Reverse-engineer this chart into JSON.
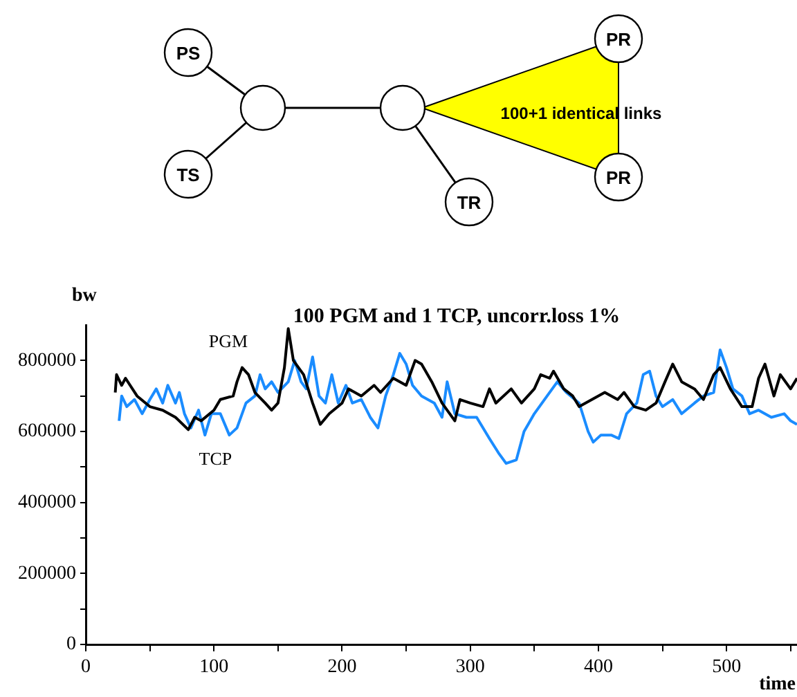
{
  "chart_data": {
    "type": "line",
    "title": "100 PGM and 1 TCP, uncorr.loss 1%",
    "xlabel": "time",
    "ylabel": "bw",
    "annotations": [
      "PS",
      "TS",
      "TR",
      "PR",
      "PR",
      "100+1 identical links"
    ],
    "xlim": [
      0,
      555
    ],
    "ylim": [
      0,
      900000
    ],
    "xticks": [
      0,
      {
        "value": 50,
        "label": null
      },
      100,
      {
        "value": 150,
        "label": null
      },
      200,
      {
        "value": 250,
        "label": null
      },
      300,
      {
        "value": 350,
        "label": null
      },
      400,
      {
        "value": 450,
        "label": null
      },
      500,
      {
        "value": 550,
        "label": null
      }
    ],
    "yticks": [
      0,
      {
        "value": 100000,
        "label": null
      },
      200000,
      {
        "value": 300000,
        "label": null
      },
      400000,
      {
        "value": 500000,
        "label": null
      },
      600000,
      {
        "value": 700000,
        "label": null
      },
      800000
    ],
    "grid": false,
    "legend": false,
    "marker": "none",
    "line_style": "solid",
    "series": [
      {
        "name": "PGM",
        "color": "#000000",
        "x": [
          23,
          24,
          28,
          31,
          40,
          50,
          60,
          70,
          80,
          85,
          90,
          100,
          105,
          115,
          118,
          122,
          127,
          132,
          140,
          145,
          150,
          155,
          158,
          162,
          170,
          177,
          183,
          190,
          200,
          205,
          215,
          225,
          230,
          240,
          250,
          257,
          262,
          270,
          278,
          288,
          292,
          300,
          310,
          315,
          320,
          332,
          340,
          350,
          355,
          362,
          365,
          373,
          380,
          385,
          395,
          405,
          415,
          420,
          428,
          437,
          445,
          452,
          458,
          465,
          475,
          482,
          490,
          495,
          503,
          512,
          520,
          525,
          530,
          537,
          542,
          550,
          555
        ],
        "values": [
          710000,
          760000,
          730000,
          750000,
          700000,
          670000,
          660000,
          640000,
          605000,
          640000,
          630000,
          660000,
          690000,
          700000,
          740000,
          780000,
          760000,
          710000,
          680000,
          660000,
          680000,
          780000,
          890000,
          800000,
          760000,
          680000,
          620000,
          650000,
          680000,
          720000,
          700000,
          730000,
          710000,
          750000,
          730000,
          800000,
          790000,
          740000,
          680000,
          630000,
          690000,
          680000,
          670000,
          720000,
          680000,
          720000,
          680000,
          720000,
          760000,
          750000,
          770000,
          720000,
          700000,
          670000,
          690000,
          710000,
          690000,
          710000,
          670000,
          660000,
          680000,
          740000,
          790000,
          740000,
          720000,
          690000,
          760000,
          780000,
          720000,
          670000,
          670000,
          750000,
          790000,
          700000,
          760000,
          720000,
          750000
        ]
      },
      {
        "name": "TCP",
        "color": "#1a8cff",
        "x": [
          26,
          28,
          32,
          38,
          44,
          50,
          55,
          60,
          64,
          70,
          73,
          77,
          82,
          88,
          93,
          98,
          105,
          112,
          118,
          125,
          132,
          136,
          140,
          145,
          150,
          158,
          163,
          168,
          172,
          177,
          182,
          187,
          192,
          197,
          203,
          208,
          215,
          222,
          228,
          234,
          240,
          245,
          250,
          255,
          262,
          272,
          278,
          282,
          288,
          297,
          305,
          315,
          322,
          328,
          336,
          342,
          350,
          360,
          368,
          375,
          385,
          392,
          396,
          402,
          410,
          416,
          422,
          430,
          435,
          440,
          445,
          450,
          458,
          465,
          475,
          482,
          490,
          495,
          500,
          505,
          512,
          518,
          525,
          535,
          545,
          550,
          555
        ],
        "values": [
          630000,
          700000,
          670000,
          690000,
          650000,
          690000,
          720000,
          680000,
          730000,
          680000,
          710000,
          650000,
          610000,
          660000,
          590000,
          650000,
          650000,
          590000,
          610000,
          680000,
          700000,
          760000,
          720000,
          740000,
          710000,
          740000,
          800000,
          740000,
          720000,
          810000,
          700000,
          680000,
          760000,
          680000,
          730000,
          680000,
          690000,
          640000,
          610000,
          700000,
          760000,
          820000,
          790000,
          730000,
          700000,
          680000,
          640000,
          740000,
          650000,
          640000,
          640000,
          580000,
          540000,
          510000,
          520000,
          600000,
          650000,
          700000,
          740000,
          710000,
          680000,
          600000,
          570000,
          590000,
          590000,
          580000,
          650000,
          680000,
          760000,
          770000,
          700000,
          670000,
          690000,
          650000,
          680000,
          700000,
          710000,
          830000,
          780000,
          720000,
          700000,
          650000,
          660000,
          640000,
          650000,
          630000,
          620000
        ]
      }
    ]
  }
}
